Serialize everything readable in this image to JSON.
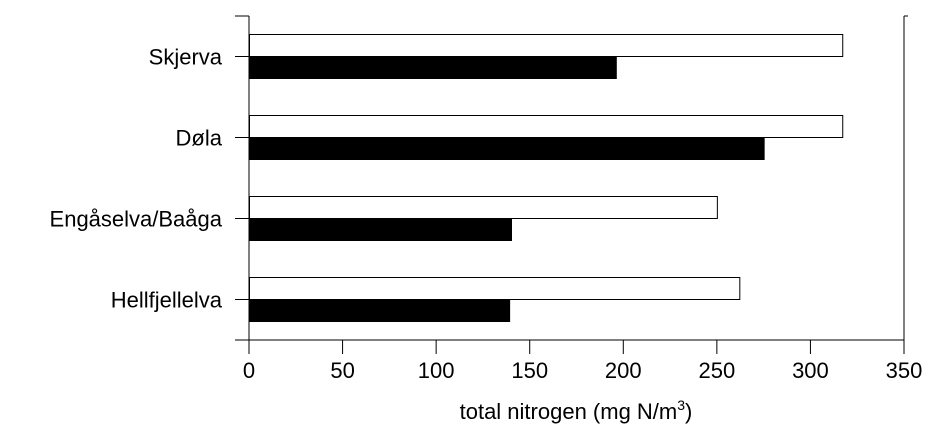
{
  "chart_data": {
    "type": "bar",
    "orientation": "horizontal",
    "categories": [
      "Skjerva",
      "Døla",
      "Engåselva/Baåga",
      "Hellfjellelva"
    ],
    "series": [
      {
        "values": [
          317,
          317,
          250,
          262
        ],
        "color": "#ffffff"
      },
      {
        "values": [
          196,
          275,
          140,
          139
        ],
        "color": "#000000"
      }
    ],
    "xlim": [
      0,
      350
    ],
    "xticks": [
      0,
      50,
      100,
      150,
      200,
      250,
      300,
      350
    ],
    "xlabel": "total nitrogen (mg N/m",
    "xlabel_superscript": "3",
    "xlabel_suffix": ")",
    "grid": false,
    "legend": "none"
  }
}
